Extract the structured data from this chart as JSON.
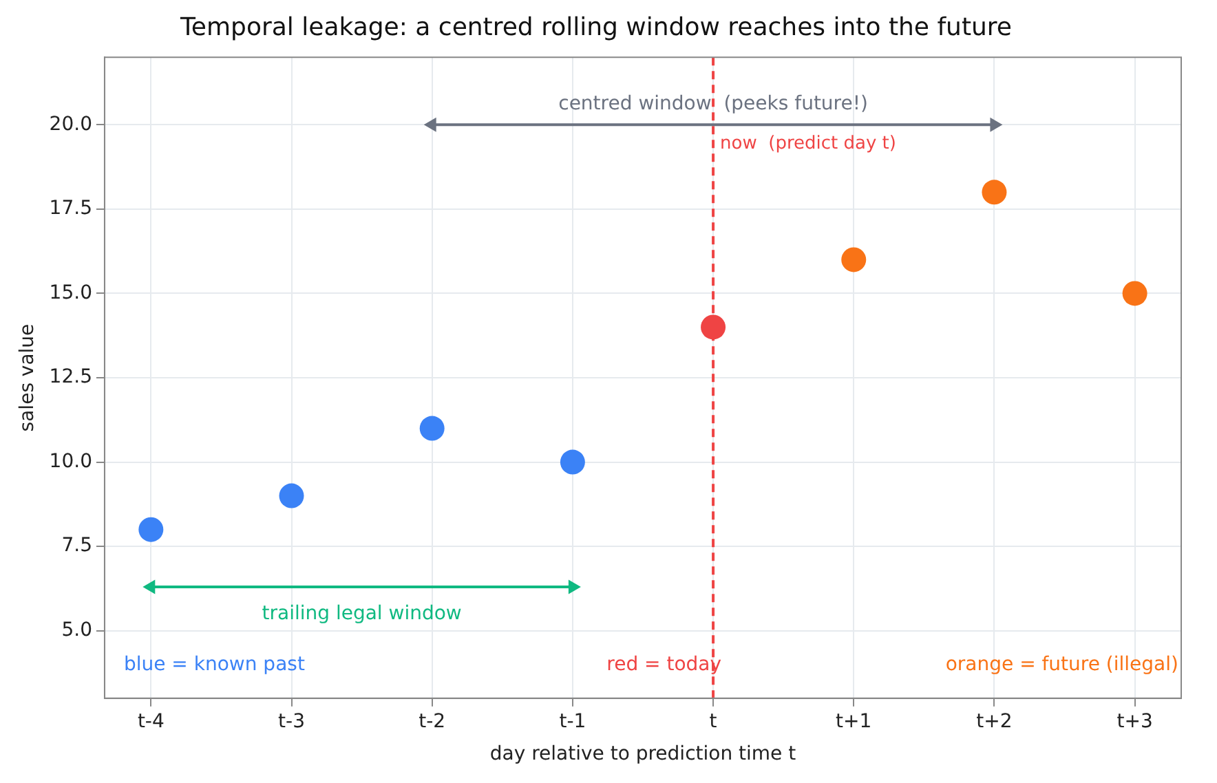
{
  "chart_data": {
    "type": "scatter",
    "title": "Temporal leakage: a centred rolling window reaches into the future",
    "xlabel": "day relative to prediction time t",
    "ylabel": "sales value",
    "categories": [
      "t-4",
      "t-3",
      "t-2",
      "t-1",
      "t",
      "t+1",
      "t+2",
      "t+3"
    ],
    "series": [
      {
        "type": "scatter",
        "values": [
          8,
          9,
          11,
          10,
          14,
          16,
          18,
          15
        ],
        "colors": [
          "#3b82f6",
          "#3b82f6",
          "#3b82f6",
          "#3b82f6",
          "#ef4444",
          "#f97316",
          "#f97316",
          "#f97316"
        ],
        "marker": "circle"
      },
      {
        "type": "line",
        "x": [
          "t-2",
          "t+2"
        ],
        "values": [
          20,
          20
        ],
        "color": "#6b7280",
        "marker": "triangle"
      },
      {
        "type": "line",
        "x": [
          "t-4",
          "t-1"
        ],
        "values": [
          6.3,
          6.3
        ],
        "color": "#10b981",
        "marker": "triangle"
      }
    ],
    "ylim": [
      3,
      22
    ],
    "yticks": [
      {
        "value": 5,
        "label": "5.0"
      },
      {
        "value": 7.5,
        "label": "7.5"
      },
      {
        "value": 10,
        "label": "10.0"
      },
      {
        "value": 12.5,
        "label": "12.5"
      },
      {
        "value": 15,
        "label": "15.0"
      },
      {
        "value": 17.5,
        "label": "17.5"
      },
      {
        "value": 20,
        "label": "20.0"
      }
    ],
    "grid": true,
    "legend": false,
    "ref_lines": [
      {
        "axis": "x",
        "value": "t",
        "label": "now  (predict day t)",
        "color": "#ef4444",
        "line_style": "dashed"
      }
    ],
    "annotations": [
      {
        "text": "centred window  (peeks future!)",
        "x": "t",
        "y": 20.6
      },
      "trailing legal window",
      "blue = known past",
      "red = today",
      "orange = future (illegal)"
    ]
  }
}
